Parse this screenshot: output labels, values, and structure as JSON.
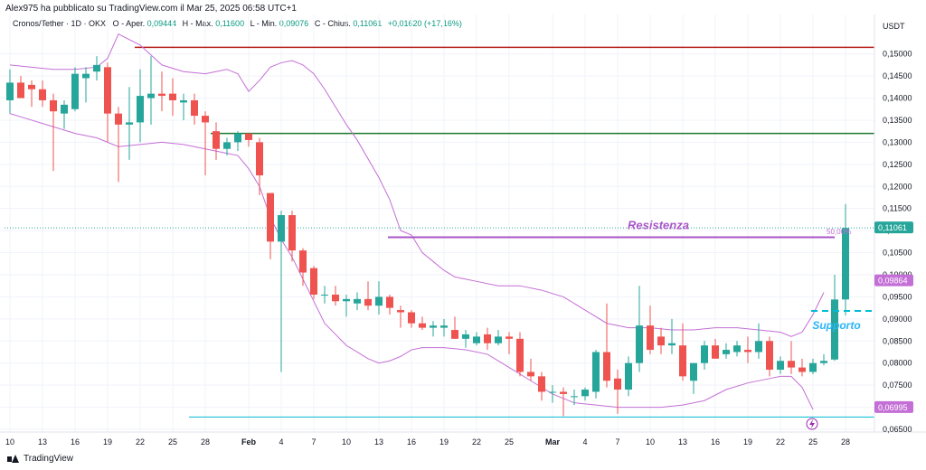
{
  "header": {
    "published_text": "Alex975 ha pubblicato su TradingView.com il Mar 25, 2025 06:58 UTC+1"
  },
  "legend": {
    "symbol": "Cronos/Tether · 1D · OKX",
    "open_label": "O - Aper.",
    "open_value": "0,09444",
    "high_label": "H - Max.",
    "high_value": "0,11600",
    "low_label": "L - Min.",
    "low_value": "0,09076",
    "close_label": "C - Chius.",
    "close_value": "0,11061",
    "change_value": "+0,01620 (+17,16%)"
  },
  "footer": {
    "brand": "TradingView"
  },
  "colors": {
    "up": "#26a69a",
    "down": "#ef5350",
    "band": "#c46fd6",
    "resistance": "#a855c7",
    "support": "#00bcd4",
    "red_level": "#b71c1c",
    "green_level": "#1b7a2f",
    "grid": "#f0f3fa",
    "lightning": "#9c27b0"
  },
  "chart_data": {
    "type": "candlestick",
    "currency": "USDT",
    "ylim": [
      0.065,
      0.153
    ],
    "y_ticks": [
      "0,15000",
      "0,14500",
      "0,14000",
      "0,13500",
      "0,13000",
      "0,12500",
      "0,12000",
      "0,11500",
      "0,11000",
      "0,10500",
      "0,10000",
      "0,09500",
      "0,09000",
      "0,08500",
      "0,08000",
      "0,07500",
      "0,07000",
      "0,06500"
    ],
    "x_ticks": [
      {
        "i": 0,
        "label": "10"
      },
      {
        "i": 3,
        "label": "13"
      },
      {
        "i": 6,
        "label": "16"
      },
      {
        "i": 9,
        "label": "19"
      },
      {
        "i": 12,
        "label": "22"
      },
      {
        "i": 15,
        "label": "25"
      },
      {
        "i": 18,
        "label": "28"
      },
      {
        "i": 22,
        "label": "Feb",
        "bold": true
      },
      {
        "i": 25,
        "label": "4"
      },
      {
        "i": 28,
        "label": "7"
      },
      {
        "i": 31,
        "label": "10"
      },
      {
        "i": 34,
        "label": "13"
      },
      {
        "i": 37,
        "label": "16"
      },
      {
        "i": 40,
        "label": "19"
      },
      {
        "i": 43,
        "label": "22"
      },
      {
        "i": 46,
        "label": "25"
      },
      {
        "i": 50,
        "label": "Mar",
        "bold": true
      },
      {
        "i": 53,
        "label": "4"
      },
      {
        "i": 56,
        "label": "7"
      },
      {
        "i": 59,
        "label": "10"
      },
      {
        "i": 62,
        "label": "13"
      },
      {
        "i": 65,
        "label": "16"
      },
      {
        "i": 68,
        "label": "19"
      },
      {
        "i": 71,
        "label": "22"
      },
      {
        "i": 74,
        "label": "25"
      },
      {
        "i": 77,
        "label": "28"
      }
    ],
    "candles": [
      [
        0.1395,
        0.1465,
        0.1365,
        0.1435
      ],
      [
        0.1435,
        0.145,
        0.14,
        0.14
      ],
      [
        0.143,
        0.144,
        0.138,
        0.142
      ],
      [
        0.142,
        0.144,
        0.138,
        0.1395
      ],
      [
        0.1395,
        0.141,
        0.1235,
        0.137
      ],
      [
        0.1365,
        0.1395,
        0.133,
        0.1385
      ],
      [
        0.1375,
        0.147,
        0.137,
        0.1455
      ],
      [
        0.1445,
        0.147,
        0.139,
        0.1455
      ],
      [
        0.146,
        0.1495,
        0.144,
        0.1475
      ],
      [
        0.147,
        0.148,
        0.13,
        0.1365
      ],
      [
        0.1365,
        0.138,
        0.121,
        0.134
      ],
      [
        0.134,
        0.1425,
        0.126,
        0.1345
      ],
      [
        0.1345,
        0.1465,
        0.13,
        0.1405
      ],
      [
        0.14,
        0.1495,
        0.134,
        0.141
      ],
      [
        0.141,
        0.146,
        0.137,
        0.1405
      ],
      [
        0.141,
        0.1445,
        0.136,
        0.1395
      ],
      [
        0.139,
        0.141,
        0.135,
        0.1395
      ],
      [
        0.1395,
        0.141,
        0.134,
        0.136
      ],
      [
        0.136,
        0.137,
        0.1225,
        0.1345
      ],
      [
        0.1325,
        0.1345,
        0.126,
        0.1285
      ],
      [
        0.1285,
        0.131,
        0.127,
        0.13
      ],
      [
        0.13,
        0.1325,
        0.128,
        0.132
      ],
      [
        0.132,
        0.132,
        0.129,
        0.1305
      ],
      [
        0.13,
        0.131,
        0.118,
        0.1225
      ],
      [
        0.1185,
        0.1185,
        0.1035,
        0.1075
      ],
      [
        0.1075,
        0.1145,
        0.078,
        0.1135
      ],
      [
        0.1135,
        0.1145,
        0.103,
        0.1055
      ],
      [
        0.1055,
        0.106,
        0.0975,
        0.1005
      ],
      [
        0.1015,
        0.102,
        0.0945,
        0.0955
      ],
      [
        0.0955,
        0.0975,
        0.0935,
        0.0955
      ],
      [
        0.0955,
        0.0975,
        0.093,
        0.094
      ],
      [
        0.094,
        0.0955,
        0.0905,
        0.0945
      ],
      [
        0.0935,
        0.096,
        0.092,
        0.0945
      ],
      [
        0.0945,
        0.0985,
        0.092,
        0.093
      ],
      [
        0.093,
        0.0985,
        0.091,
        0.095
      ],
      [
        0.095,
        0.0955,
        0.091,
        0.0925
      ],
      [
        0.092,
        0.093,
        0.088,
        0.0915
      ],
      [
        0.0915,
        0.092,
        0.088,
        0.089
      ],
      [
        0.089,
        0.0905,
        0.0875,
        0.088
      ],
      [
        0.088,
        0.0895,
        0.086,
        0.0885
      ],
      [
        0.088,
        0.09,
        0.086,
        0.0885
      ],
      [
        0.0875,
        0.0905,
        0.0855,
        0.0855
      ],
      [
        0.0855,
        0.0875,
        0.0835,
        0.0865
      ],
      [
        0.0845,
        0.087,
        0.084,
        0.086
      ],
      [
        0.0865,
        0.088,
        0.083,
        0.0845
      ],
      [
        0.0845,
        0.0875,
        0.084,
        0.086
      ],
      [
        0.086,
        0.087,
        0.082,
        0.0855
      ],
      [
        0.0855,
        0.087,
        0.077,
        0.078
      ],
      [
        0.078,
        0.081,
        0.076,
        0.077
      ],
      [
        0.077,
        0.078,
        0.0715,
        0.0735
      ],
      [
        0.0735,
        0.075,
        0.071,
        0.0735
      ],
      [
        0.0735,
        0.0745,
        0.068,
        0.073
      ],
      [
        0.0725,
        0.074,
        0.0705,
        0.0725
      ],
      [
        0.0725,
        0.0745,
        0.0715,
        0.074
      ],
      [
        0.0735,
        0.083,
        0.072,
        0.0825
      ],
      [
        0.0825,
        0.0935,
        0.0745,
        0.076
      ],
      [
        0.0765,
        0.0785,
        0.0685,
        0.074
      ],
      [
        0.074,
        0.0815,
        0.0725,
        0.08
      ],
      [
        0.08,
        0.0975,
        0.078,
        0.0885
      ],
      [
        0.0885,
        0.093,
        0.082,
        0.083
      ],
      [
        0.086,
        0.088,
        0.082,
        0.084
      ],
      [
        0.084,
        0.09,
        0.082,
        0.0845
      ],
      [
        0.084,
        0.089,
        0.076,
        0.077
      ],
      [
        0.076,
        0.08,
        0.073,
        0.08
      ],
      [
        0.08,
        0.085,
        0.0785,
        0.084
      ],
      [
        0.084,
        0.0855,
        0.081,
        0.081
      ],
      [
        0.082,
        0.0845,
        0.081,
        0.083
      ],
      [
        0.0825,
        0.085,
        0.0815,
        0.084
      ],
      [
        0.083,
        0.086,
        0.08,
        0.0825
      ],
      [
        0.0825,
        0.089,
        0.081,
        0.085
      ],
      [
        0.085,
        0.086,
        0.077,
        0.0785
      ],
      [
        0.0785,
        0.0815,
        0.0775,
        0.0805
      ],
      [
        0.0805,
        0.085,
        0.0775,
        0.079
      ],
      [
        0.079,
        0.081,
        0.077,
        0.078
      ],
      [
        0.078,
        0.081,
        0.0775,
        0.08
      ],
      [
        0.08,
        0.082,
        0.0795,
        0.0805
      ],
      [
        0.0808,
        0.1,
        0.0805,
        0.0944
      ],
      [
        0.0944,
        0.116,
        0.0908,
        0.1106
      ]
    ],
    "bands": {
      "upper": [
        [
          0,
          0.1475
        ],
        [
          2,
          0.147
        ],
        [
          4,
          0.1465
        ],
        [
          6,
          0.1465
        ],
        [
          8,
          0.147
        ],
        [
          9,
          0.149
        ],
        [
          10,
          0.1545
        ],
        [
          12,
          0.152
        ],
        [
          14,
          0.1475
        ],
        [
          16,
          0.146
        ],
        [
          18,
          0.1455
        ],
        [
          20,
          0.1465
        ],
        [
          21,
          0.1455
        ],
        [
          22,
          0.1415
        ],
        [
          23,
          0.144
        ],
        [
          24,
          0.147
        ],
        [
          25,
          0.148
        ],
        [
          26,
          0.1485
        ],
        [
          27,
          0.1475
        ],
        [
          28,
          0.1455
        ],
        [
          29,
          0.142
        ],
        [
          30,
          0.138
        ],
        [
          31,
          0.134
        ],
        [
          32,
          0.1305
        ],
        [
          34,
          0.122
        ],
        [
          35,
          0.117
        ],
        [
          36,
          0.11
        ],
        [
          37,
          0.109
        ],
        [
          38,
          0.105
        ],
        [
          39,
          0.103
        ],
        [
          40,
          0.101
        ],
        [
          41,
          0.0995
        ],
        [
          43,
          0.0985
        ],
        [
          45,
          0.0975
        ],
        [
          47,
          0.0975
        ],
        [
          49,
          0.0965
        ],
        [
          51,
          0.095
        ],
        [
          53,
          0.092
        ],
        [
          55,
          0.089
        ],
        [
          57,
          0.088
        ],
        [
          59,
          0.088
        ],
        [
          61,
          0.0875
        ],
        [
          63,
          0.0875
        ],
        [
          65,
          0.088
        ],
        [
          67,
          0.088
        ],
        [
          69,
          0.0875
        ],
        [
          71,
          0.087
        ],
        [
          72,
          0.086
        ],
        [
          73,
          0.087
        ],
        [
          74,
          0.091
        ],
        [
          75,
          0.096
        ]
      ],
      "lower": [
        [
          0,
          0.1365
        ],
        [
          2,
          0.135
        ],
        [
          4,
          0.1335
        ],
        [
          6,
          0.132
        ],
        [
          8,
          0.131
        ],
        [
          10,
          0.129
        ],
        [
          12,
          0.1295
        ],
        [
          14,
          0.13
        ],
        [
          16,
          0.1295
        ],
        [
          18,
          0.1285
        ],
        [
          20,
          0.1275
        ],
        [
          21,
          0.127
        ],
        [
          22,
          0.124
        ],
        [
          23,
          0.12
        ],
        [
          24,
          0.113
        ],
        [
          25,
          0.108
        ],
        [
          26,
          0.104
        ],
        [
          27,
          0.099
        ],
        [
          28,
          0.094
        ],
        [
          29,
          0.089
        ],
        [
          30,
          0.0865
        ],
        [
          31,
          0.084
        ],
        [
          32,
          0.0825
        ],
        [
          33,
          0.081
        ],
        [
          34,
          0.08
        ],
        [
          35,
          0.0805
        ],
        [
          36,
          0.0815
        ],
        [
          37,
          0.083
        ],
        [
          38,
          0.0835
        ],
        [
          40,
          0.0835
        ],
        [
          42,
          0.083
        ],
        [
          44,
          0.082
        ],
        [
          46,
          0.079
        ],
        [
          48,
          0.076
        ],
        [
          50,
          0.073
        ],
        [
          52,
          0.071
        ],
        [
          54,
          0.0705
        ],
        [
          56,
          0.07
        ],
        [
          58,
          0.07
        ],
        [
          60,
          0.07
        ],
        [
          62,
          0.0705
        ],
        [
          64,
          0.0715
        ],
        [
          66,
          0.074
        ],
        [
          68,
          0.0755
        ],
        [
          70,
          0.0765
        ],
        [
          71,
          0.077
        ],
        [
          72,
          0.077
        ],
        [
          73,
          0.0745
        ],
        [
          74,
          0.0695
        ]
      ]
    },
    "levels": [
      {
        "value": 0.1515,
        "color": "#b71c1c",
        "from": 12
      },
      {
        "value": 0.132,
        "color": "#1b7a2f",
        "from": 19
      },
      {
        "value": 0.1106,
        "color": "#26a69a",
        "from": 0,
        "dotted": true
      }
    ],
    "resistance": {
      "label": "Resistenza",
      "value": 0.1085,
      "from": 35,
      "to": 75
    },
    "fib_label": "50,00%",
    "support": {
      "label": "Supporto",
      "value": 0.0918
    },
    "support_line": {
      "value": 0.0678,
      "from": 17
    },
    "price_tags": [
      {
        "value": 0.1106,
        "text": "0,11061",
        "color": "#26a69a"
      },
      {
        "value": 0.09864,
        "text": "0,09864",
        "color": "#c46fd6"
      },
      {
        "value": 0.06995,
        "text": "0,06995",
        "color": "#c46fd6"
      }
    ]
  }
}
